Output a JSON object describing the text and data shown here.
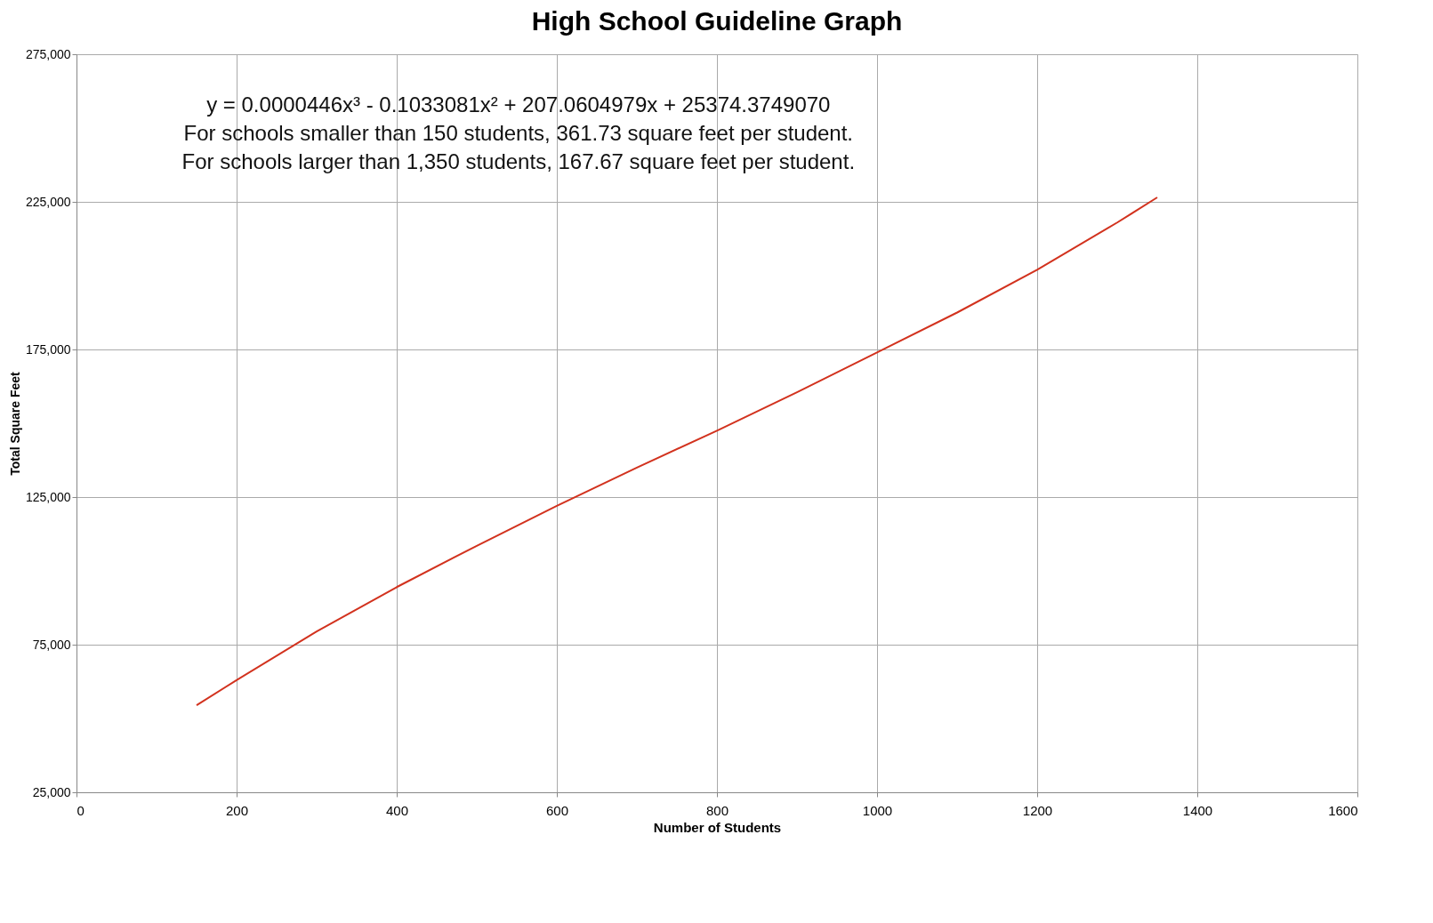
{
  "chart_data": {
    "type": "line",
    "title": "High School Guideline Graph",
    "xlabel": "Number of Students",
    "ylabel": "Total Square Feet",
    "x": [
      150,
      200,
      300,
      400,
      500,
      600,
      700,
      800,
      900,
      1000,
      1100,
      1200,
      1300,
      1350
    ],
    "series": [
      {
        "color": "#d2321e",
        "values": [
          54500,
          63000,
          79500,
          94500,
          108500,
          122000,
          135000,
          147500,
          160500,
          174000,
          187500,
          202000,
          218000,
          226500
        ]
      }
    ],
    "xlim": [
      0,
      1600
    ],
    "xticks": [
      0,
      200,
      400,
      600,
      800,
      1000,
      1200,
      1400,
      1600
    ],
    "ylim": [
      25000,
      275000
    ],
    "yticks": [
      {
        "value": 25000,
        "label": "25,000"
      },
      {
        "value": 75000,
        "label": "75,000"
      },
      {
        "value": 125000,
        "label": "125,000"
      },
      {
        "value": 175000,
        "label": "175,000"
      },
      {
        "value": 225000,
        "label": "225,000"
      },
      {
        "value": 275000,
        "label": "275,000"
      }
    ],
    "grid": true,
    "marker": "none",
    "line_style": "solid",
    "annotations": [
      "y = 0.0000446x³ - 0.1033081x² + 207.0604979x + 25374.3749070",
      "For schools smaller than 150 students, 361.73 square feet per student.",
      "For schools larger than 1,350 students, 167.67 square feet per student."
    ]
  }
}
